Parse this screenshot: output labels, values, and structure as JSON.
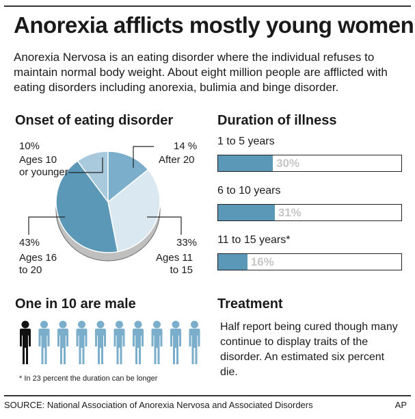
{
  "header": {
    "title": "Anorexia afflicts mostly young women",
    "intro": "Anorexia Nervosa is an eating disorder where the individual refuses to maintain normal body weight. About eight million people are afflicted with eating disorders including anorexia, bulimia and binge disorder."
  },
  "onset": {
    "heading": "Onset of eating disorder",
    "labels": [
      {
        "pct": "10%",
        "text": "Ages 10\nor younger"
      },
      {
        "pct": "14 %",
        "text": "After 20"
      },
      {
        "pct": "43%",
        "text": "Ages 16\nto 20"
      },
      {
        "pct": "33%",
        "text": "Ages 11\nto 15"
      }
    ]
  },
  "duration": {
    "heading": "Duration of illness",
    "footnote": "* In 23 percent the duration can be longer"
  },
  "male": {
    "heading": "One in 10 are male",
    "figures_total": 10,
    "figures_male": 1
  },
  "treatment": {
    "heading": "Treatment",
    "text": "Half report being cured though many continue to display traits of the disorder. An estimated six percent die."
  },
  "footer": {
    "source": "SOURCE: National Association of Anorexia Nervosa and Associated Disorders",
    "credit": "AP"
  },
  "colors": {
    "dark_blue": "#5b97b6",
    "mid_blue": "#7aaecb",
    "light_blue": "#a9c9dc",
    "pale_blue": "#d9e8f1",
    "male_figure": "#111111"
  },
  "chart_data": [
    {
      "type": "pie",
      "title": "Onset of eating disorder",
      "categories": [
        "Ages 10 or younger",
        "After 20",
        "Ages 11 to 15",
        "Ages 16 to 20"
      ],
      "values": [
        10,
        14,
        33,
        43
      ]
    },
    {
      "type": "bar",
      "title": "Duration of illness",
      "categories": [
        "1 to 5 years",
        "6 to 10 years",
        "11 to 15 years*"
      ],
      "values": [
        30,
        31,
        16
      ],
      "value_labels": [
        "30%",
        "31%",
        "16%"
      ]
    }
  ]
}
